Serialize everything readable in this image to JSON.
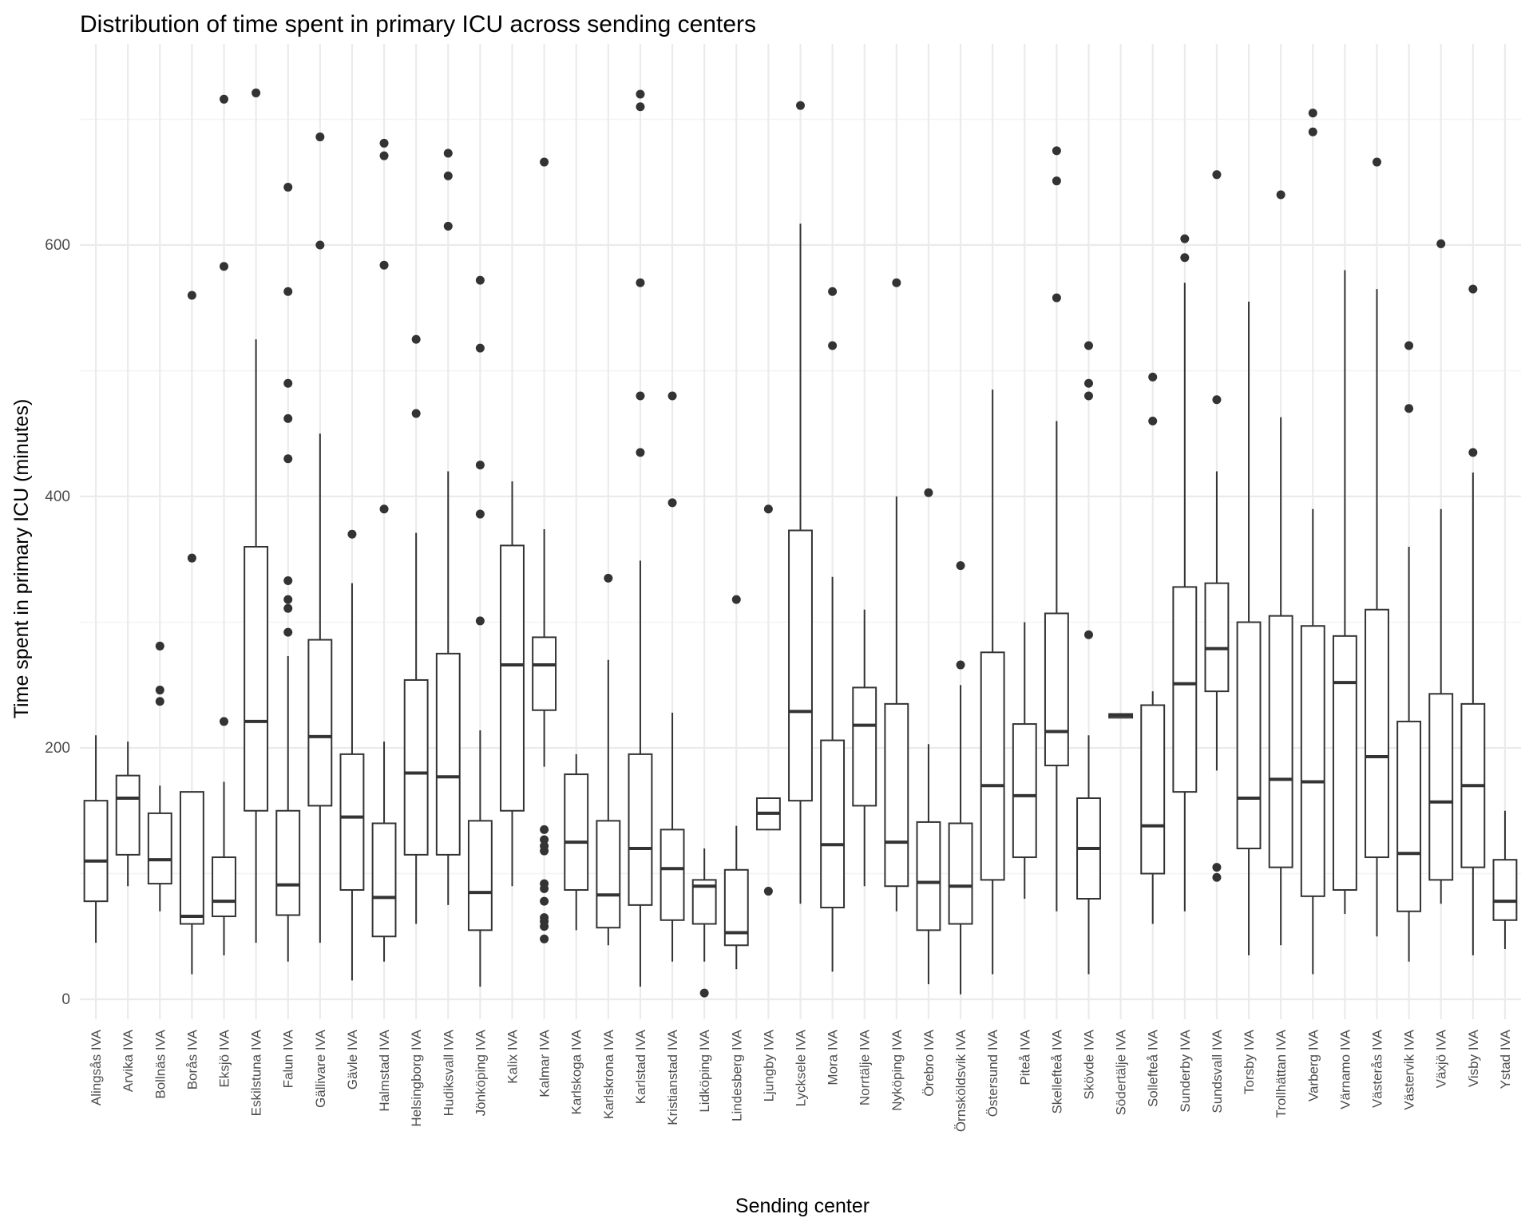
{
  "chart_data": {
    "type": "boxplot",
    "title": "Distribution of time spent in primary ICU across sending centers",
    "xlabel": "Sending center",
    "ylabel": "Time spent in primary ICU (minutes)",
    "ylim": [
      -50,
      725
    ],
    "yticks": [
      0,
      200,
      400,
      600
    ],
    "grid": true,
    "colors": {
      "box": "#333333",
      "grid_major": "#ebebeb",
      "grid_minor": "#f3f3f3",
      "tick_text": "#4d4d4d",
      "title": "#000000"
    },
    "categories": [
      "Alingsås IVA",
      "Arvika IVA",
      "Bollnäs IVA",
      "Borås IVA",
      "Eksjö IVA",
      "Eskilstuna IVA",
      "Falun IVA",
      "Gällivare IVA",
      "Gävle IVA",
      "Halmstad IVA",
      "Helsingborg IVA",
      "Hudiksvall IVA",
      "Jönköping IVA",
      "Kalix IVA",
      "Kalmar IVA",
      "Karlskoga IVA",
      "Karlskrona IVA",
      "Karlstad IVA",
      "Kristianstad IVA",
      "Lidköping IVA",
      "Lindesberg IVA",
      "Ljungby IVA",
      "Lycksele IVA",
      "Mora IVA",
      "Norrtälje IVA",
      "Nyköping IVA",
      "Örebro IVA",
      "Örnsköldsvik IVA",
      "Östersund IVA",
      "Piteå IVA",
      "Skellefteå IVA",
      "Skövde IVA",
      "Södertälje IVA",
      "Sollefteå IVA",
      "Sunderby IVA",
      "Sundsvall IVA",
      "Torsby IVA",
      "Trollhättan IVA",
      "Varberg IVA",
      "Värnamo IVA",
      "Västerås IVA",
      "Västervik IVA",
      "Växjö IVA",
      "Visby IVA",
      "Ystad IVA"
    ],
    "boxes": [
      {
        "min": 45,
        "q1": 78,
        "median": 110,
        "q3": 158,
        "max": 210,
        "outliers": []
      },
      {
        "min": 90,
        "q1": 115,
        "median": 160,
        "q3": 178,
        "max": 205,
        "outliers": []
      },
      {
        "min": 70,
        "q1": 92,
        "median": 111,
        "q3": 148,
        "max": 170,
        "outliers": [
          237,
          246,
          281
        ]
      },
      {
        "min": 20,
        "q1": 60,
        "median": 66,
        "q3": 165,
        "max": 165,
        "outliers": [
          351,
          560
        ]
      },
      {
        "min": 35,
        "q1": 66,
        "median": 78,
        "q3": 113,
        "max": 173,
        "outliers": [
          221,
          583,
          716
        ]
      },
      {
        "min": 45,
        "q1": 150,
        "median": 221,
        "q3": 360,
        "max": 525,
        "outliers": [
          721
        ]
      },
      {
        "min": 30,
        "q1": 67,
        "median": 91,
        "q3": 150,
        "max": 273,
        "outliers": [
          292,
          311,
          318,
          333,
          430,
          462,
          490,
          563,
          646
        ]
      },
      {
        "min": 45,
        "q1": 154,
        "median": 209,
        "q3": 286,
        "max": 450,
        "outliers": [
          600,
          686
        ]
      },
      {
        "min": 15,
        "q1": 87,
        "median": 145,
        "q3": 195,
        "max": 331,
        "outliers": [
          370
        ]
      },
      {
        "min": 30,
        "q1": 50,
        "median": 81,
        "q3": 140,
        "max": 205,
        "outliers": [
          390,
          584,
          671,
          681
        ]
      },
      {
        "min": 60,
        "q1": 115,
        "median": 180,
        "q3": 254,
        "max": 371,
        "outliers": [
          466,
          525
        ]
      },
      {
        "min": 75,
        "q1": 115,
        "median": 177,
        "q3": 275,
        "max": 420,
        "outliers": [
          615,
          655,
          673
        ]
      },
      {
        "min": 10,
        "q1": 55,
        "median": 85,
        "q3": 142,
        "max": 214,
        "outliers": [
          301,
          386,
          425,
          518,
          572
        ]
      },
      {
        "min": 90,
        "q1": 150,
        "median": 266,
        "q3": 361,
        "max": 412,
        "outliers": []
      },
      {
        "min": 185,
        "q1": 230,
        "median": 266,
        "q3": 288,
        "max": 374,
        "outliers": [
          48,
          58,
          62,
          65,
          78,
          88,
          92,
          118,
          122,
          127,
          135,
          666
        ]
      },
      {
        "min": 55,
        "q1": 87,
        "median": 125,
        "q3": 179,
        "max": 195,
        "outliers": []
      },
      {
        "min": 43,
        "q1": 57,
        "median": 83,
        "q3": 142,
        "max": 270,
        "outliers": [
          335
        ]
      },
      {
        "min": 10,
        "q1": 75,
        "median": 120,
        "q3": 195,
        "max": 349,
        "outliers": [
          435,
          480,
          570,
          710,
          720
        ]
      },
      {
        "min": 30,
        "q1": 63,
        "median": 104,
        "q3": 135,
        "max": 228,
        "outliers": [
          395,
          480
        ]
      },
      {
        "min": 30,
        "q1": 60,
        "median": 90,
        "q3": 95,
        "max": 120,
        "outliers": [
          5
        ]
      },
      {
        "min": 24,
        "q1": 43,
        "median": 53,
        "q3": 103,
        "max": 138,
        "outliers": [
          318
        ]
      },
      {
        "min": 135,
        "q1": 135,
        "median": 148,
        "q3": 160,
        "max": 160,
        "outliers": [
          86,
          390
        ]
      },
      {
        "min": 76,
        "q1": 158,
        "median": 229,
        "q3": 373,
        "max": 617,
        "outliers": [
          711
        ]
      },
      {
        "min": 22,
        "q1": 73,
        "median": 123,
        "q3": 206,
        "max": 336,
        "outliers": [
          520,
          563
        ]
      },
      {
        "min": 90,
        "q1": 154,
        "median": 218,
        "q3": 248,
        "max": 310,
        "outliers": []
      },
      {
        "min": 70,
        "q1": 90,
        "median": 125,
        "q3": 235,
        "max": 400,
        "outliers": [
          570
        ]
      },
      {
        "min": 12,
        "q1": 55,
        "median": 93,
        "q3": 141,
        "max": 203,
        "outliers": [
          403
        ]
      },
      {
        "min": 4,
        "q1": 60,
        "median": 90,
        "q3": 140,
        "max": 250,
        "outliers": [
          266,
          345
        ]
      },
      {
        "min": 20,
        "q1": 95,
        "median": 170,
        "q3": 276,
        "max": 485,
        "outliers": []
      },
      {
        "min": 80,
        "q1": 113,
        "median": 162,
        "q3": 219,
        "max": 300,
        "outliers": []
      },
      {
        "min": 70,
        "q1": 186,
        "median": 213,
        "q3": 307,
        "max": 460,
        "outliers": [
          558,
          651,
          675
        ]
      },
      {
        "min": 20,
        "q1": 80,
        "median": 120,
        "q3": 160,
        "max": 210,
        "outliers": [
          290,
          480,
          490,
          520
        ]
      },
      {
        "min": 224,
        "q1": 224,
        "median": 226,
        "q3": 227,
        "max": 227,
        "outliers": []
      },
      {
        "min": 60,
        "q1": 100,
        "median": 138,
        "q3": 234,
        "max": 245,
        "outliers": [
          460,
          495
        ]
      },
      {
        "min": 70,
        "q1": 165,
        "median": 251,
        "q3": 328,
        "max": 570,
        "outliers": [
          590,
          605
        ]
      },
      {
        "min": 182,
        "q1": 245,
        "median": 279,
        "q3": 331,
        "max": 420,
        "outliers": [
          97,
          105,
          477,
          656
        ]
      },
      {
        "min": 35,
        "q1": 120,
        "median": 160,
        "q3": 300,
        "max": 555,
        "outliers": []
      },
      {
        "min": 43,
        "q1": 105,
        "median": 175,
        "q3": 305,
        "max": 463,
        "outliers": [
          640
        ]
      },
      {
        "min": 20,
        "q1": 82,
        "median": 173,
        "q3": 297,
        "max": 390,
        "outliers": [
          690,
          705
        ]
      },
      {
        "min": 68,
        "q1": 87,
        "median": 252,
        "q3": 289,
        "max": 580,
        "outliers": []
      },
      {
        "min": 50,
        "q1": 113,
        "median": 193,
        "q3": 310,
        "max": 565,
        "outliers": [
          666
        ]
      },
      {
        "min": 30,
        "q1": 70,
        "median": 116,
        "q3": 221,
        "max": 360,
        "outliers": [
          470,
          520
        ]
      },
      {
        "min": 76,
        "q1": 95,
        "median": 157,
        "q3": 243,
        "max": 390,
        "outliers": [
          601
        ]
      },
      {
        "min": 35,
        "q1": 105,
        "median": 170,
        "q3": 235,
        "max": 419,
        "outliers": [
          435,
          565
        ]
      },
      {
        "min": 40,
        "q1": 63,
        "median": 78,
        "q3": 111,
        "max": 150,
        "outliers": []
      }
    ]
  }
}
